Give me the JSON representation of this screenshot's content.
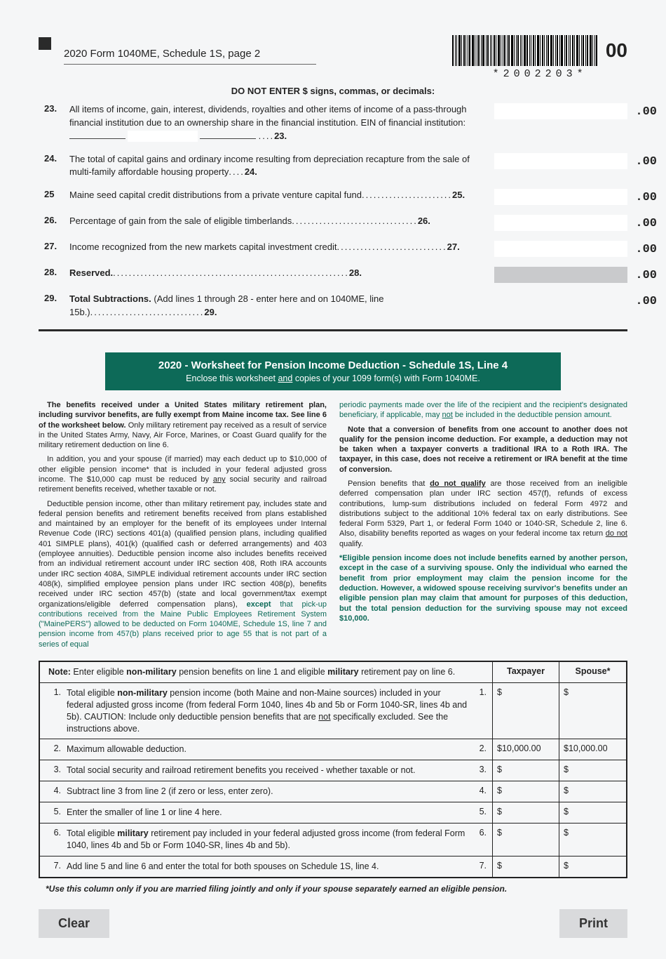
{
  "header": {
    "title": "2020 Form 1040ME, Schedule 1S, page 2",
    "barcode_text": "*2002203*",
    "suffix": "00"
  },
  "warning": "DO NOT ENTER $ signs, commas, or decimals:",
  "lines": [
    {
      "num": "23.",
      "text": "All items of income, gain, interest, dividends, royalties and other items of income of a pass-through financial institution due to an ownership share in the financial institution. EIN of financial institution:",
      "ref": "23.",
      "suffix": ".00",
      "ein": true
    },
    {
      "num": "24.",
      "text": "The total of capital gains and ordinary income resulting from depreciation recapture from the sale of multi-family affordable housing property",
      "ref": "24.",
      "suffix": ".00"
    },
    {
      "num": "25",
      "text": "Maine seed capital credit distributions from a private venture capital fund",
      "ref": "25.",
      "suffix": ".00"
    },
    {
      "num": "26.",
      "text": "Percentage of gain from the sale of eligible timberlands",
      "ref": "26.",
      "suffix": ".00"
    },
    {
      "num": "27.",
      "text": "Income recognized from the new markets capital investment credit",
      "ref": "27.",
      "suffix": ".00"
    },
    {
      "num": "28.",
      "text_bold": "Reserved.",
      "text": "",
      "ref": "28.",
      "suffix": ".00",
      "shaded": true
    },
    {
      "num": "29.",
      "text_bold": "Total Subtractions.",
      "text": " (Add lines 1 through 28 - enter here and on 1040ME, line 15b.)",
      "ref": "29.",
      "suffix": ".00",
      "noBox": true
    }
  ],
  "banner": {
    "title": "2020 - Worksheet for Pension Income Deduction - Schedule 1S, Line 4",
    "sub": "Enclose this worksheet and copies of your 1099 form(s) with Form 1040ME."
  },
  "para": {
    "left": {
      "p1_bold": "The benefits received under a United States military retirement plan, including survivor benefits, are fully exempt from Maine income tax. See line 6 of the worksheet below.",
      "p1_rest": " Only military retirement pay received as a result of service in the United States Army, Navy, Air Force, Marines, or Coast Guard qualify for the military retirement deduction on line 6.",
      "p2": "In addition, you and your spouse (if married) may each deduct up to $10,000 of other eligible pension income* that is included in your federal adjusted gross income. The $10,000 cap must be reduced by any social security and railroad retirement benefits received, whether taxable or not.",
      "p3a": "Deductible pension income, other than military retirement pay, includes state and federal pension benefits and retirement benefits received from plans established and maintained by an employer for the benefit of its employees under Internal Revenue Code (IRC) sections 401(a) (qualified pension plans, including qualified 401 SIMPLE plans), 401(k) (qualified cash or deferred arrangements) and 403 (employee annuities). Deductible pension income also includes benefits received from an individual retirement account under IRC section 408, Roth IRA accounts under IRC section 408A, SIMPLE individual retirement accounts under IRC section 408(k), simplified employee pension plans under IRC section 408(p), benefits received under IRC section 457(b) (state and local government/tax exempt organizations/eligible deferred compensation plans), ",
      "p3_except": "except",
      "p3b": " that pick-up contributions received from the Maine Public Employees Retirement System (\"MainePERS\") allowed to be deducted on Form 1040ME, Schedule 1S, line 7 and pension income from 457(b) plans received prior to age 55 that is not part of a series of equal"
    },
    "right": {
      "p1": "periodic payments made over the life of the recipient and the recipient's designated beneficiary, if applicable, may not be included in the deductible pension amount.",
      "p2": "Note that a conversion of benefits from one account to another does not qualify for the pension income deduction. For example, a deduction may not be taken when a taxpayer converts a traditional IRA to a Roth IRA. The taxpayer, in this case, does not receive a retirement or IRA benefit at the time of conversion.",
      "p3a": "Pension benefits that ",
      "p3_dnq": "do not qualify",
      "p3b": " are those received from an ineligible deferred compensation plan under IRC section 457(f), refunds of excess contributions, lump-sum distributions included on federal Form 4972 and distributions subject to the additional 10% federal tax on early distributions. See federal Form 5329, Part 1, or federal Form 1040 or 1040-SR, Schedule 2, line 6. Also, disability benefits reported as wages on your federal income tax return do not qualify.",
      "p4a": "*Eligible pension income does not include benefits earned by another person, ",
      "p4_except": "except",
      "p4b": " in the case of a surviving spouse. Only the individual who earned the benefit from prior employment may claim the pension income for the deduction. However, a widowed spouse receiving survivor's benefits under an eligible pension plan may claim that amount for purposes of this deduction, but the total pension deduction for the surviving spouse may not exceed $10,000."
    }
  },
  "worksheet": {
    "note_a": "Note:",
    "note_b": " Enter eligible ",
    "note_nm": "non-military",
    "note_c": " pension benefits on line 1 and eligible ",
    "note_mil": "military",
    "note_d": " retirement pay on line 6.",
    "head_tax": "Taxpayer",
    "head_sp": "Spouse*",
    "rows": [
      {
        "num": "1.",
        "text_a": "Total eligible ",
        "text_bold": "non-military",
        "text_b": " pension income (both Maine and non-Maine sources) included in your federal adjusted gross income (from federal Form 1040, lines 4b and 5b or Form 1040-SR, lines 4b and 5b).  CAUTION: Include only deductible pension benefits that are not specifically excluded.  See the instructions above.",
        "ref": "1.",
        "tax": "$",
        "sp": "$"
      },
      {
        "num": "2.",
        "text_a": "Maximum allowable deduction.",
        "ref": "2.",
        "tax": "$10,000.00",
        "sp": "$10,000.00"
      },
      {
        "num": "3.",
        "text_a": "Total social security and railroad retirement benefits you received - whether taxable or not.",
        "ref": "3.",
        "tax": "$",
        "sp": "$"
      },
      {
        "num": "4.",
        "text_a": "Subtract line 3 from line 2 (if zero or less, enter zero).",
        "ref": "4.",
        "tax": "$",
        "sp": "$"
      },
      {
        "num": "5.",
        "text_a": "Enter the smaller of line 1 or line 4 here.",
        "ref": "5.",
        "tax": "$",
        "sp": "$"
      },
      {
        "num": "6.",
        "text_a": "Total eligible ",
        "text_bold": "military",
        "text_b": " retirement pay included in your federal adjusted gross income (from federal Form 1040, lines 4b and 5b or Form 1040-SR, lines 4b and 5b).",
        "ref": "6.",
        "tax": "$",
        "sp": "$"
      },
      {
        "num": "7.",
        "text_a": "Add line 5 and line 6 and enter the total for both spouses on Schedule 1S, line 4.",
        "ref": "7.",
        "tax": "$",
        "sp": "$"
      }
    ],
    "footnote": "*Use this column only if you are married filing jointly and only if your spouse separately earned an eligible pension."
  },
  "buttons": {
    "clear": "Clear",
    "print": "Print"
  }
}
